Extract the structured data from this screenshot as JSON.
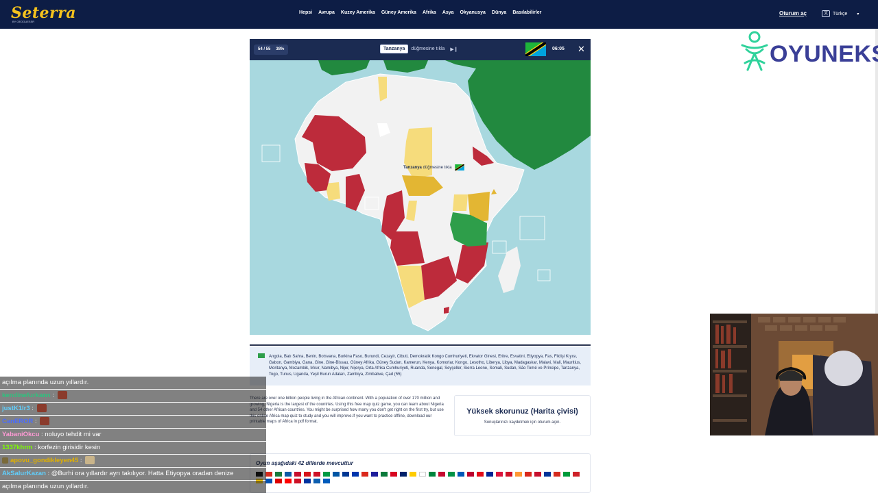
{
  "site": {
    "logo": "Seterra",
    "logo_sub": "BY GEOGUESSR",
    "nav": [
      "Hepsi",
      "Avrupa",
      "Kuzey Amerika",
      "Güney Amerika",
      "Afrika",
      "Asya",
      "Okyanusya",
      "Dünya",
      "Basılabilirler"
    ],
    "signin": "Oturum aç",
    "language": "Türkçe"
  },
  "watermark": {
    "text": "OYUNEKS",
    "color": "#3a3f97",
    "icon_color": "#2fd29b"
  },
  "game": {
    "progress": "54 / 55",
    "percent": "38%",
    "target_country": "Tanzanya",
    "instruction": "düğmesine tıkla",
    "skip_icon": "skip-icon",
    "timer": "06:05",
    "close_icon": "close-icon",
    "tooltip_country": "Tanzanya",
    "tooltip_instruction": "düğmesine tıkla",
    "colors": {
      "ocean": "#a8d8df",
      "land": "#f2f2f2",
      "other_continents": "#22893f",
      "correct_first": "#ffffff",
      "correct_second": "#f6dc7c",
      "correct_third": "#e3b633",
      "wrong": "#bd2b3b",
      "highlight": "#2e9e4a",
      "header": "#1b2b52"
    }
  },
  "remaining": {
    "text": "Angola, Batı Sahra, Benin, Botsvana, Burkina Faso, Burundi, Cezayir, Cibuti, Demokratik Kongo Cumhuriyeti, Ekvator Ginesi, Eritre, Esvatini, Etiyopya, Fas, Fildişi Kıyısı, Gabon, Gambiya, Gana, Gine, Gine-Bissau, Güney Afrika, Güney Sudan, Kamerun, Kenya, Komorlar, Kongo, Lesotho, Liberya, Libya, Madagaskar, Malavi, Mali, Mauritius, Moritanya, Mozambik, Mısır, Namibya, Nijer, Nijerya, Orta Afrika Cumhuriyeti, Ruanda, Senegal, Seyşeller, Sierra Leone, Somali, Sudan, São Tomé ve Príncipe, Tanzanya, Togo, Tunus, Uganda, Yeşil Burun Adaları, Zambiya, Zimbabve, Çad (55)"
  },
  "about": "There are over one billion people living in the African continent. With a population of over 170 million and growing, Nigeria is the largest of the countries. Using this free map quiz game, you can learn about Nigeria and 54 other African countries. You might be surprised how many you don't get right on the first try, but use this online Africa map quiz to study and you will improve.If you want to practice offline, download our printable maps of Africa in pdf format.",
  "highscore": {
    "title": "Yüksek skorunuz (Harita çivisi)",
    "subtitle": "Sonuçlarınızı kaydetmek için oturum açın."
  },
  "languages": {
    "title": "Oyun aşağıdaki 42 dillerde mevcuttur",
    "flag_colors": [
      "#000000",
      "#d52b1e",
      "#1a7a3b",
      "#0c5aa6",
      "#c8102e",
      "#d7141a",
      "#ce1126",
      "#009a44",
      "#0055a4",
      "#003893",
      "#0035ad",
      "#da291c",
      "#1e1e9c",
      "#0a7a3b",
      "#d80621",
      "#012169",
      "#ffcc00",
      "#ffffff",
      "#00843d",
      "#c60c30",
      "#009246",
      "#0057b7",
      "#bc002d",
      "#e30a17",
      "#002395",
      "#dc143c",
      "#ce1126",
      "#ff9933",
      "#da291c",
      "#c8102e",
      "#003399",
      "#d52b1e",
      "#009b3a",
      "#ce2028",
      "#ffcd00",
      "#0052b4",
      "#dd0000",
      "#ff0000",
      "#ce1126",
      "#0033a0",
      "#0d5eaf",
      "#005bbb"
    ]
  },
  "chat": [
    {
      "user": "",
      "user_color": "#ffffff",
      "text": "açılma planında uzun yıllardır."
    },
    {
      "user": "kendinefurkann",
      "user_color": "#2ec27e",
      "text": ": ",
      "emote_color": "#8a3b2c"
    },
    {
      "user": "justK1lr3",
      "user_color": "#5fd0ff",
      "text": ": ",
      "emote_color": "#8a3b2c"
    },
    {
      "user": "CanEROR",
      "user_color": "#4a6cff",
      "text": ": ",
      "emote_color": "#8a3b2c"
    },
    {
      "user": "YabaniOkcu",
      "user_color": "#ff9ad5",
      "text": ": noluyo tehdit mi var"
    },
    {
      "user": "1337khrm",
      "user_color": "#7cfc00",
      "text": ": korfezin girisidir kesin"
    },
    {
      "user": "apovu_gondikleyen45",
      "user_color": "#e0b000",
      "text": ": ",
      "emote_color": "#c9b48a",
      "badge_color": "#7a6a3a"
    },
    {
      "user": "AkSalurKazan",
      "user_color": "#5fd0ff",
      "text": ": @Burhi ora yıllardır ayrı takılıyor. Hatta Etiyopya oradan denize"
    },
    {
      "user": "",
      "user_color": "#ffffff",
      "text": "açılma planında uzun yıllardır."
    }
  ]
}
